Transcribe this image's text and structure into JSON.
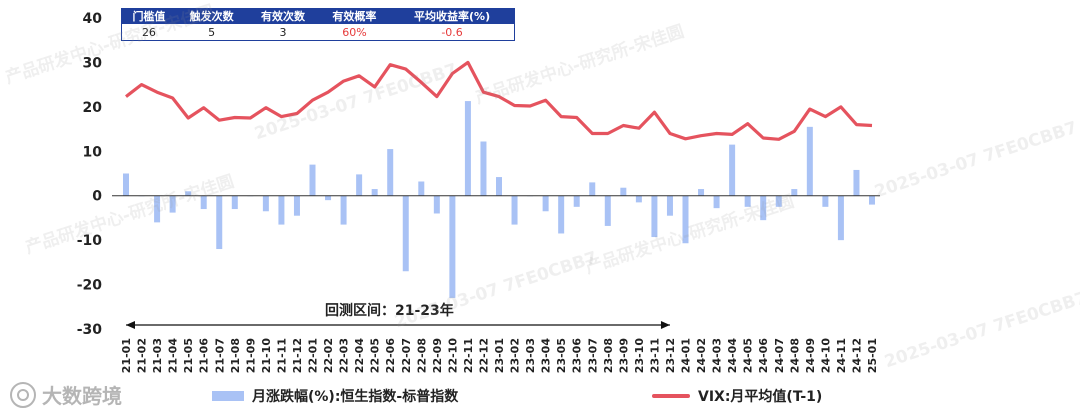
{
  "stats_table": {
    "headers": [
      "门槛值",
      "触发次数",
      "有效次数",
      "有效概率",
      "平均收益率(%)"
    ],
    "values": [
      "26",
      "5",
      "3",
      "60%",
      "-0.6"
    ]
  },
  "watermark": {
    "date_code": "2025-03-07 7FE0CBB7",
    "org_text": "产品研发中心-研究所-宋佳圆"
  },
  "logo_text": "大数跨境",
  "chart_data": {
    "type": "bar+line",
    "categories": [
      "21-01",
      "21-02",
      "21-03",
      "21-04",
      "21-05",
      "21-06",
      "21-07",
      "21-08",
      "21-09",
      "21-10",
      "21-11",
      "21-12",
      "22-01",
      "22-02",
      "22-03",
      "22-04",
      "22-05",
      "22-06",
      "22-07",
      "22-08",
      "22-09",
      "22-10",
      "22-11",
      "22-12",
      "23-01",
      "23-02",
      "23-03",
      "23-04",
      "23-05",
      "23-06",
      "23-07",
      "23-08",
      "23-09",
      "23-10",
      "23-11",
      "23-12",
      "24-01",
      "24-02",
      "24-03",
      "24-04",
      "24-05",
      "24-06",
      "24-07",
      "24-08",
      "24-09",
      "24-10",
      "24-11",
      "24-12",
      "25-01"
    ],
    "ylim": [
      -30,
      40
    ],
    "yticks": [
      -30,
      -20,
      -10,
      0,
      10,
      20,
      30,
      40
    ],
    "series": [
      {
        "name": "月涨跌幅(%):恒生指数-标普指数",
        "type": "bar",
        "color": "#a9c2f5",
        "values": [
          5,
          0,
          -6,
          -3.8,
          1,
          -3,
          -12,
          -3,
          0,
          -3.5,
          -6.5,
          -4.5,
          7,
          -1,
          -6.5,
          4.8,
          1.5,
          10.5,
          -17,
          3.2,
          -4,
          -23,
          21.3,
          12.2,
          4.2,
          -6.5,
          0,
          -3.5,
          -8.5,
          -2.5,
          3,
          -6.8,
          1.8,
          -1.5,
          -9.3,
          -4.5,
          -10.7,
          1.5,
          -2.8,
          11.5,
          -2.5,
          -5.5,
          -2.5,
          1.5,
          15.5,
          -2.5,
          -10,
          5.8,
          -2
        ]
      },
      {
        "name": "VIX:月平均值(T-1)",
        "type": "line",
        "color": "#e5535e",
        "values": [
          22.3,
          25,
          23.3,
          22,
          17.5,
          19.8,
          17,
          17.6,
          17.5,
          19.8,
          17.8,
          18.5,
          21.5,
          23.3,
          25.8,
          27,
          24.5,
          29.5,
          28.5,
          25.5,
          22.3,
          27.5,
          30,
          23.3,
          22.3,
          20.3,
          20.2,
          21.5,
          17.8,
          17.6,
          14,
          14,
          15.8,
          15.2,
          18.8,
          14,
          12.8,
          13.5,
          14,
          13.8,
          16.2,
          13,
          12.7,
          14.5,
          19.5,
          17.8,
          20,
          16,
          15.8
        ]
      }
    ],
    "annotation": {
      "text": "回测区间：21-23年",
      "from": "21-01",
      "to": "23-12"
    }
  }
}
